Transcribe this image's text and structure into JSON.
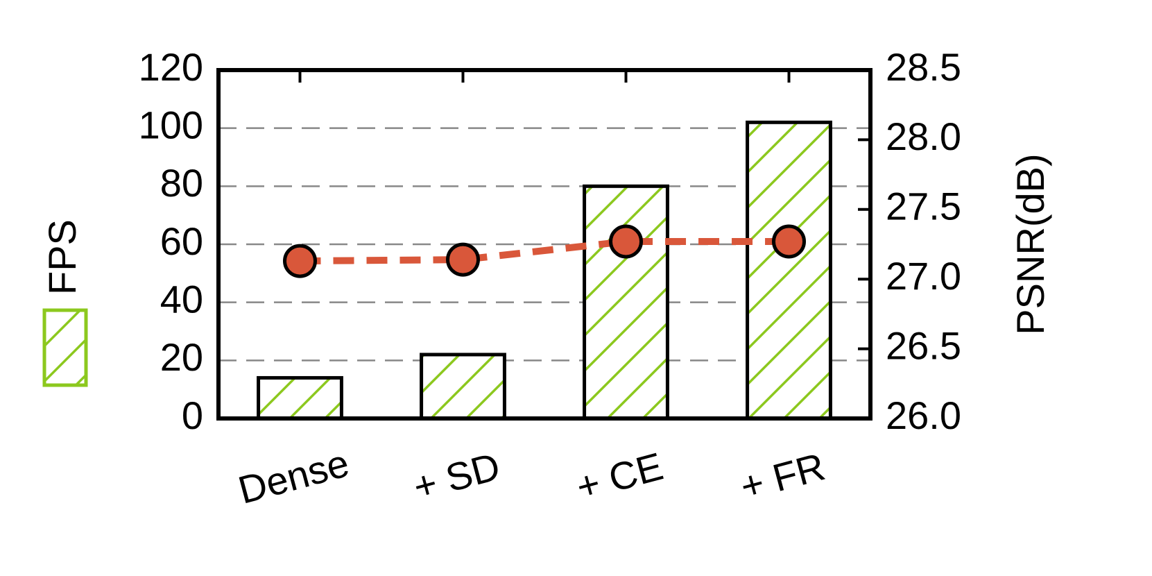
{
  "chart_data": {
    "type": "bar",
    "categories": [
      "Dense",
      "+ SD",
      "+ CE",
      "+ FR"
    ],
    "series": [
      {
        "name": "FPS",
        "type": "bar",
        "color": "#8cc81e",
        "values": [
          14,
          22,
          80,
          102
        ]
      },
      {
        "type": "line",
        "axis": "y2",
        "color": "#d9573a",
        "values": [
          27.13,
          27.14,
          27.27,
          27.27
        ]
      }
    ],
    "ylim": [
      0,
      120
    ],
    "yticks": [
      0,
      20,
      40,
      60,
      80,
      100,
      120
    ],
    "y2lim": [
      26.0,
      28.5
    ],
    "y2ticks": [
      {
        "value": 26.0,
        "label": "26.0"
      },
      26.5,
      {
        "value": 27.0,
        "label": "27.0"
      },
      27.5,
      {
        "value": 28.0,
        "label": "28.0"
      },
      28.5
    ],
    "y2label": "PSNR(dB)",
    "grid": true,
    "legend": "left"
  }
}
